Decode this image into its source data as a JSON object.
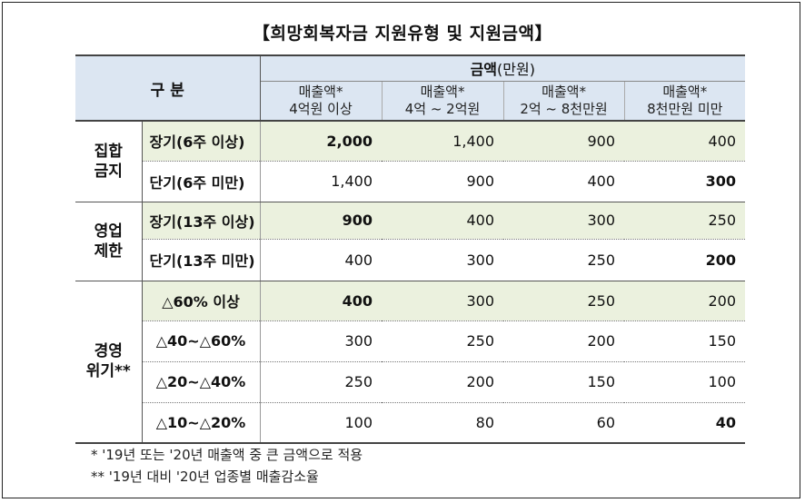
{
  "title": "【희망회복자금 지원유형 및 지원금액】",
  "header": {
    "category": "구 분",
    "amount_label": "금액",
    "amount_unit": "(만원)",
    "columns": [
      {
        "line1": "매출액*",
        "line2": "4억원 이상"
      },
      {
        "line1": "매출액*",
        "line2": "4억 ~ 2억원"
      },
      {
        "line1": "매출액*",
        "line2": "2억 ~ 8천만원"
      },
      {
        "line1": "매출액*",
        "line2": "8천만원 미만"
      }
    ]
  },
  "groups": [
    {
      "label_line1": "집합",
      "label_line2": "금지"
    },
    {
      "label_line1": "영업",
      "label_line2": "제한"
    },
    {
      "label_line1": "경영",
      "label_line2": "위기**"
    }
  ],
  "rows": [
    {
      "label": "장기(6주 이상)",
      "values": [
        "2,000",
        "1,400",
        "900",
        "400"
      ]
    },
    {
      "label": "단기(6주 미만)",
      "values": [
        "1,400",
        "900",
        "400",
        "300"
      ]
    },
    {
      "label": "장기(13주 이상)",
      "values": [
        "900",
        "400",
        "300",
        "250"
      ]
    },
    {
      "label": "단기(13주 미만)",
      "values": [
        "400",
        "300",
        "250",
        "200"
      ]
    },
    {
      "label": "△60% 이상",
      "values": [
        "400",
        "300",
        "250",
        "200"
      ]
    },
    {
      "label": "△40~△60%",
      "values": [
        "300",
        "250",
        "200",
        "150"
      ]
    },
    {
      "label": "△20~△40%",
      "values": [
        "250",
        "200",
        "150",
        "100"
      ]
    },
    {
      "label": "△10~△20%",
      "values": [
        "100",
        "80",
        "60",
        "40"
      ]
    }
  ],
  "notes": [
    "* '19년 또는 '20년 매출액 중 큰 금액으로 적용",
    "** '19년 대비 '20년 업종별 매출감소율"
  ]
}
